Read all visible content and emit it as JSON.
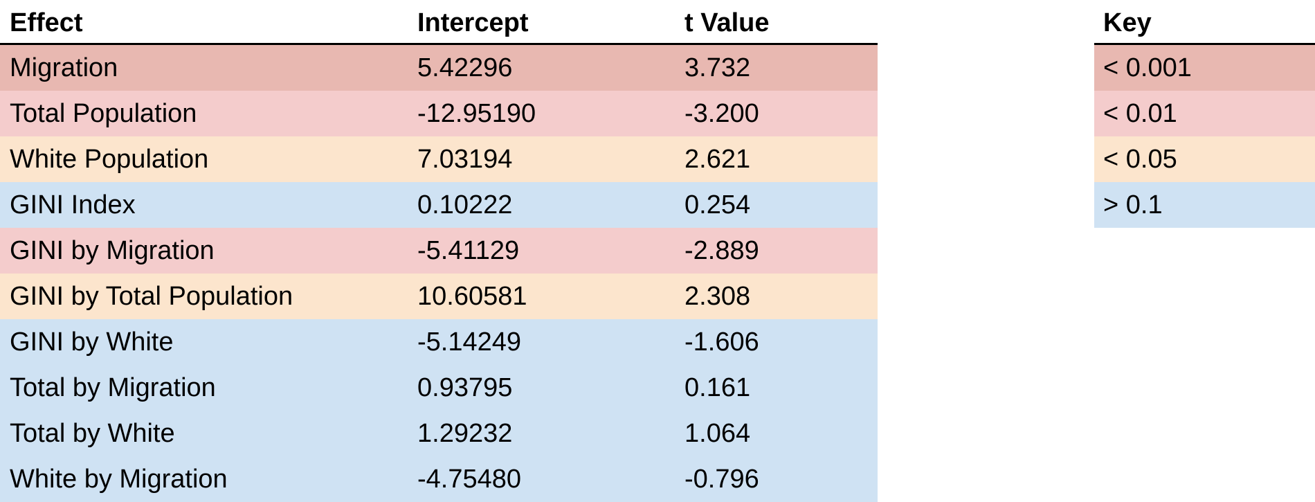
{
  "colors": {
    "p_lt_0_001": "#e8b8b1",
    "p_lt_0_01": "#f4cccc",
    "p_lt_0_05": "#fce5cd",
    "p_gt_0_1": "#cfe2f3"
  },
  "main_table": {
    "headers": [
      "Effect",
      "Intercept",
      "t Value"
    ],
    "rows": [
      {
        "effect": "Migration",
        "intercept": "5.42296",
        "t_value": "3.732",
        "level": "p_lt_0_001"
      },
      {
        "effect": "Total Population",
        "intercept": "-12.95190",
        "t_value": "-3.200",
        "level": "p_lt_0_01"
      },
      {
        "effect": "White Population",
        "intercept": "7.03194",
        "t_value": "2.621",
        "level": "p_lt_0_05"
      },
      {
        "effect": "GINI Index",
        "intercept": "0.10222",
        "t_value": "0.254",
        "level": "p_gt_0_1"
      },
      {
        "effect": "GINI by Migration",
        "intercept": "-5.41129",
        "t_value": "-2.889",
        "level": "p_lt_0_01"
      },
      {
        "effect": "GINI by Total Population",
        "intercept": "10.60581",
        "t_value": "2.308",
        "level": "p_lt_0_05"
      },
      {
        "effect": "GINI by White",
        "intercept": "-5.14249",
        "t_value": "-1.606",
        "level": "p_gt_0_1"
      },
      {
        "effect": "Total by Migration",
        "intercept": "0.93795",
        "t_value": "0.161",
        "level": "p_gt_0_1"
      },
      {
        "effect": "Total by White",
        "intercept": "1.29232",
        "t_value": "1.064",
        "level": "p_gt_0_1"
      },
      {
        "effect": "White by Migration",
        "intercept": "-4.75480",
        "t_value": "-0.796",
        "level": "p_gt_0_1"
      }
    ]
  },
  "key_table": {
    "header": "Key",
    "rows": [
      {
        "label": "< 0.001",
        "level": "p_lt_0_001"
      },
      {
        "label": "< 0.01",
        "level": "p_lt_0_01"
      },
      {
        "label": "< 0.05",
        "level": "p_lt_0_05"
      },
      {
        "label": "> 0.1",
        "level": "p_gt_0_1"
      }
    ]
  }
}
